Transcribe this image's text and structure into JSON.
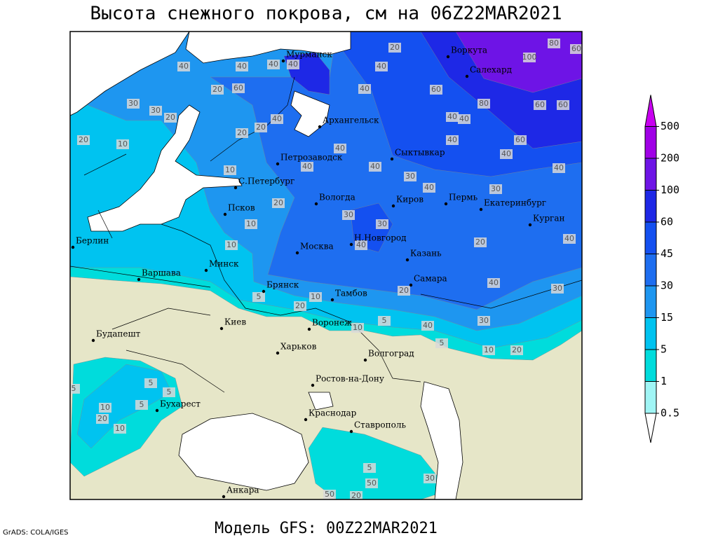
{
  "title": "Высота снежного покрова, см на 06Z22MAR2021",
  "subtitle": "Модель GFS: 00Z22MAR2021",
  "credit": "GrADS: COLA/IGES",
  "cities": [
    "Мурманск",
    "Воркута",
    "Салехард",
    "Архангельск",
    "Сыктывкар",
    "Петрозаводск",
    "С.Петербург",
    "Вологда",
    "Киров",
    "Пермь",
    "Екатеринбург",
    "Курган",
    "Псков",
    "Берлин",
    "Н.Новгород",
    "Москва",
    "Казань",
    "Минск",
    "Варшава",
    "Самара",
    "Брянск",
    "Тамбов",
    "Киев",
    "Воронеж",
    "Будапешт",
    "Харьков",
    "Волгоград",
    "Ростов-на-Дону",
    "Бухарест",
    "Краснодар",
    "Ставрополь",
    "Анкара"
  ],
  "contour_labels": [
    20,
    40,
    40,
    60,
    80,
    100,
    80,
    60,
    60,
    60,
    60,
    40,
    40,
    30,
    40,
    40,
    40,
    40,
    30,
    40,
    40,
    40,
    40,
    20,
    20,
    60,
    20,
    20,
    30,
    30,
    20,
    10,
    40,
    40,
    40,
    40,
    10,
    20,
    10,
    10,
    40,
    30,
    30,
    20,
    40,
    40,
    30,
    30,
    40,
    5,
    10,
    10,
    20,
    5,
    20,
    5,
    10,
    20,
    5,
    5,
    5,
    10,
    20,
    10,
    5,
    50,
    50,
    20,
    30,
    5
  ],
  "colorbar": {
    "levels": [
      0.5,
      1,
      5,
      15,
      30,
      45,
      60,
      100,
      200,
      500
    ],
    "colors": [
      "#ffffff",
      "#a0f5f5",
      "#00dcdc",
      "#00c3f0",
      "#1e96f0",
      "#1e6ef0",
      "#1450f0",
      "#1e28e6",
      "#6e14e6",
      "#a000e6",
      "#c800f0"
    ]
  }
}
